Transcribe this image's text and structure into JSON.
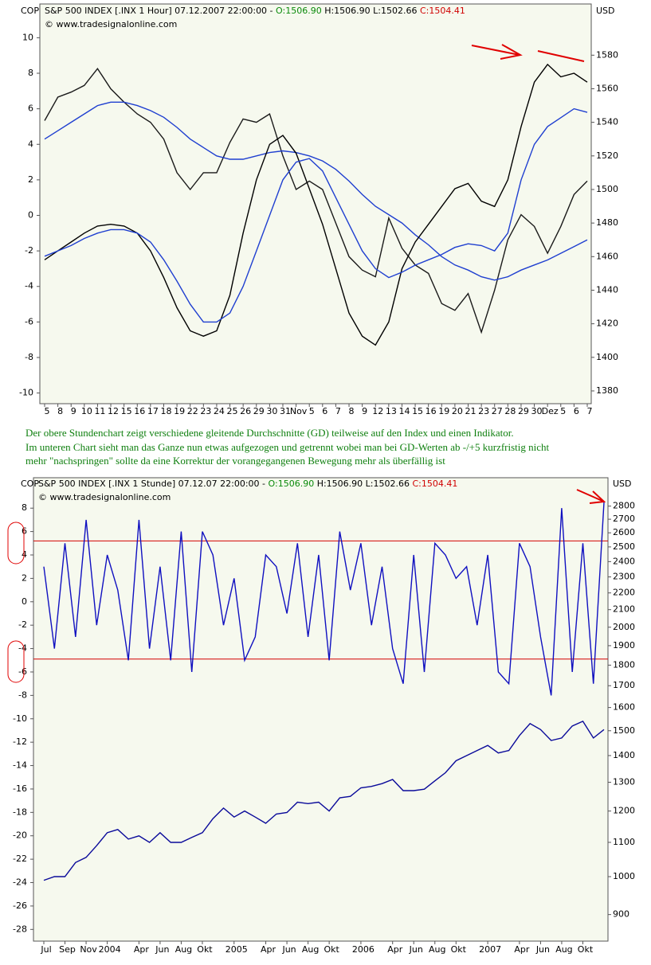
{
  "chart_data": [
    {
      "type": "line",
      "left_axis_label": "COP",
      "right_axis_label": "USD",
      "instrument": "S&P 500 INDEX [.INX  1 Hour] 07.12.2007 22:00:00 - ",
      "open": "O:1506.90",
      "high_low": "H:1506.90 L:1502.66",
      "close": "C:1504.41",
      "copyright": "© www.tradesignalonline.com",
      "categories": [
        "5",
        "8",
        "9",
        "10",
        "11",
        "12",
        "15",
        "16",
        "17",
        "18",
        "19",
        "22",
        "23",
        "24",
        "25",
        "26",
        "29",
        "30",
        "31",
        "Nov",
        "5",
        "6",
        "7",
        "8",
        "9",
        "12",
        "13",
        "14",
        "15",
        "16",
        "19",
        "20",
        "21",
        "23",
        "27",
        "28",
        "29",
        "30",
        "Dez",
        "5",
        "6",
        "7"
      ],
      "ylim": [
        -10.6,
        11.9
      ],
      "yticks": [
        10,
        8,
        6,
        4,
        2,
        0,
        -2,
        -4,
        -6,
        -8,
        -10
      ],
      "y2lim": [
        1372.4,
        1610.5
      ],
      "y2ticks": [
        1580,
        1560,
        1540,
        1520,
        1500,
        1480,
        1460,
        1440,
        1420,
        1400,
        1380
      ],
      "background": "#f6f9ee",
      "series": [
        {
          "color": "#1a1a1a",
          "axis": "y2",
          "values": [
            1541,
            1555,
            1558,
            1562,
            1572,
            1560,
            1552,
            1545,
            1540,
            1530,
            1510,
            1500,
            1510,
            1510,
            1528,
            1542,
            1540,
            1545,
            1520,
            1500,
            1505,
            1500,
            1480,
            1460,
            1452,
            1448,
            1483,
            1465,
            1455,
            1450,
            1432,
            1428,
            1438,
            1415,
            1440,
            1470,
            1485,
            1478,
            1462,
            1478,
            1497,
            1505
          ]
        },
        {
          "color": "#1f3fd0",
          "axis": "y2",
          "values": [
            1530,
            1535,
            1540,
            1545,
            1550,
            1552,
            1552,
            1550,
            1547,
            1543,
            1537,
            1530,
            1525,
            1520,
            1518,
            1518,
            1520,
            1522,
            1523,
            1522,
            1520,
            1517,
            1512,
            1505,
            1497,
            1490,
            1485,
            1480,
            1473,
            1467,
            1460,
            1455,
            1452,
            1448,
            1446,
            1448,
            1452,
            1455,
            1458,
            1462,
            1466,
            1470
          ]
        },
        {
          "color": "#000000",
          "axis": "y",
          "values": [
            -2.5,
            -2.0,
            -1.5,
            -1.0,
            -0.6,
            -0.5,
            -0.6,
            -1.0,
            -2.0,
            -3.5,
            -5.2,
            -6.5,
            -6.8,
            -6.5,
            -4.5,
            -1.0,
            2.0,
            4.0,
            4.5,
            3.5,
            1.5,
            -0.5,
            -3.0,
            -5.5,
            -6.8,
            -7.3,
            -6.0,
            -3.0,
            -1.5,
            -0.5,
            0.5,
            1.5,
            1.8,
            0.8,
            0.5,
            2.0,
            5.0,
            7.5,
            8.5,
            7.8,
            8.0,
            7.5
          ]
        },
        {
          "color": "#1f3fd0",
          "axis": "y",
          "values": [
            -2.3,
            -2.0,
            -1.7,
            -1.3,
            -1.0,
            -0.8,
            -0.8,
            -1.0,
            -1.5,
            -2.5,
            -3.7,
            -5.0,
            -6.0,
            -6.0,
            -5.5,
            -4.0,
            -2.0,
            0.0,
            2.0,
            3.0,
            3.2,
            2.5,
            1.0,
            -0.5,
            -2.0,
            -3.0,
            -3.5,
            -3.2,
            -2.8,
            -2.5,
            -2.2,
            -1.8,
            -1.6,
            -1.7,
            -2.0,
            -1.0,
            2.0,
            4.0,
            5.0,
            5.5,
            6.0,
            5.8
          ]
        }
      ]
    },
    {
      "type": "line",
      "left_axis_label": "COP",
      "right_axis_label": "USD",
      "instrument": "S&P 500 INDEX [.INX  1 Stunde] 07.12.07 22:00:00 - ",
      "open": "O:1506.90",
      "high_low": "H:1506.90 L:1502.66",
      "close": "C:1504.41",
      "copyright": "© www.tradesignalonline.com",
      "categories": [
        "Jul",
        null,
        "Sep",
        null,
        "Nov",
        null,
        "2004",
        null,
        null,
        "Apr",
        null,
        "Jun",
        null,
        "Aug",
        null,
        "Okt",
        null,
        null,
        "2005",
        null,
        null,
        "Apr",
        null,
        "Jun",
        null,
        "Aug",
        null,
        "Okt",
        null,
        null,
        "2006",
        null,
        null,
        "Apr",
        null,
        "Jun",
        null,
        "Aug",
        null,
        "Okt",
        null,
        null,
        "2007",
        null,
        null,
        "Apr",
        null,
        "Jun",
        null,
        "Aug",
        null,
        "Okt",
        null,
        null
      ],
      "ylim": [
        -29.0,
        10.6
      ],
      "yticks": [
        8,
        6,
        4,
        2,
        0,
        -2,
        -4,
        -6,
        -8,
        -10,
        -12,
        -14,
        -16,
        -18,
        -20,
        -22,
        -24,
        -26,
        -28
      ],
      "y2lim": [
        836,
        3030
      ],
      "y2_log_scale": true,
      "y2ticks": [
        2800,
        2700,
        2600,
        2500,
        2400,
        2300,
        2200,
        2100,
        2000,
        1900,
        1800,
        1700,
        1600,
        1500,
        1400,
        1300,
        1200,
        1100,
        1000,
        900
      ],
      "hlines": [
        5.2,
        -4.9
      ],
      "hline_color": "#d40000",
      "background": "#f6f9ee",
      "series": [
        {
          "color": "#0a0a9a",
          "axis": "y2",
          "values": [
            990,
            1000,
            1000,
            1040,
            1055,
            1090,
            1130,
            1140,
            1110,
            1120,
            1100,
            1130,
            1100,
            1100,
            1115,
            1130,
            1175,
            1210,
            1180,
            1200,
            1180,
            1160,
            1190,
            1195,
            1230,
            1225,
            1230,
            1200,
            1245,
            1250,
            1280,
            1285,
            1295,
            1310,
            1270,
            1270,
            1275,
            1305,
            1335,
            1380,
            1400,
            1420,
            1440,
            1410,
            1420,
            1480,
            1530,
            1505,
            1460,
            1470,
            1520,
            1540,
            1470,
            1505
          ]
        },
        {
          "color": "#1010c0",
          "axis": "y",
          "values": [
            3,
            -4,
            5,
            -3,
            7,
            -2,
            4,
            1,
            -5,
            7,
            -4,
            3,
            -5,
            6,
            -6,
            6,
            4,
            -2,
            2,
            -5,
            -3,
            4,
            3,
            -1,
            5,
            -3,
            4,
            -5,
            6,
            1,
            5,
            -2,
            3,
            -4,
            -7,
            4,
            -6,
            5,
            4,
            2,
            3,
            -2,
            4,
            -6,
            -7,
            5,
            3,
            -3,
            -8,
            8,
            -6,
            5,
            -7,
            8.5
          ]
        }
      ]
    }
  ],
  "caption": [
    "Der obere Stundenchart zeigt verschiedene gleitende Durchschnitte (GD) teilweise auf den Index und einen Indikator.",
    "Im unteren Chart sieht man das Ganze nun etwas aufgezogen und getrennt wobei man bei GD-Werten ab -/+5 kurzfristig nicht",
    "mehr \"nachspringen\" sollte da eine Korrektur der vorangegangenen Bewegung mehr als überfällig ist"
  ]
}
